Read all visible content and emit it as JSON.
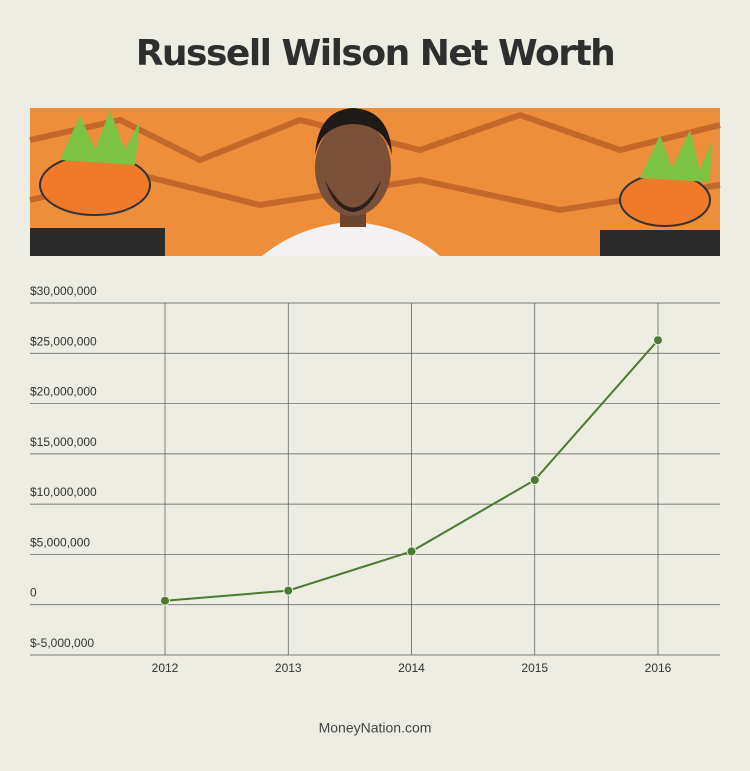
{
  "chart_data": {
    "type": "line",
    "title": "Russell Wilson Net Worth",
    "source": "MoneyNation.com",
    "categories": [
      "2012",
      "2013",
      "2014",
      "2015",
      "2016"
    ],
    "series": [
      {
        "name": "Net Worth",
        "color": "#4a7a32",
        "values": [
          400000,
          1400000,
          5300000,
          12400000,
          26300000
        ]
      }
    ],
    "ylim": [
      -5000000,
      30000000
    ],
    "yticks": [
      {
        "value": -5000000,
        "label": "$-5,000,000"
      },
      0,
      {
        "value": 5000000,
        "label": "$5,000,000"
      },
      {
        "value": 10000000,
        "label": "$10,000,000"
      },
      {
        "value": 15000000,
        "label": "$15,000,000"
      },
      {
        "value": 20000000,
        "label": "$20,000,000"
      },
      {
        "value": 25000000,
        "label": "$25,000,000"
      },
      {
        "value": 30000000,
        "label": "$30,000,000"
      }
    ],
    "grid": true
  }
}
